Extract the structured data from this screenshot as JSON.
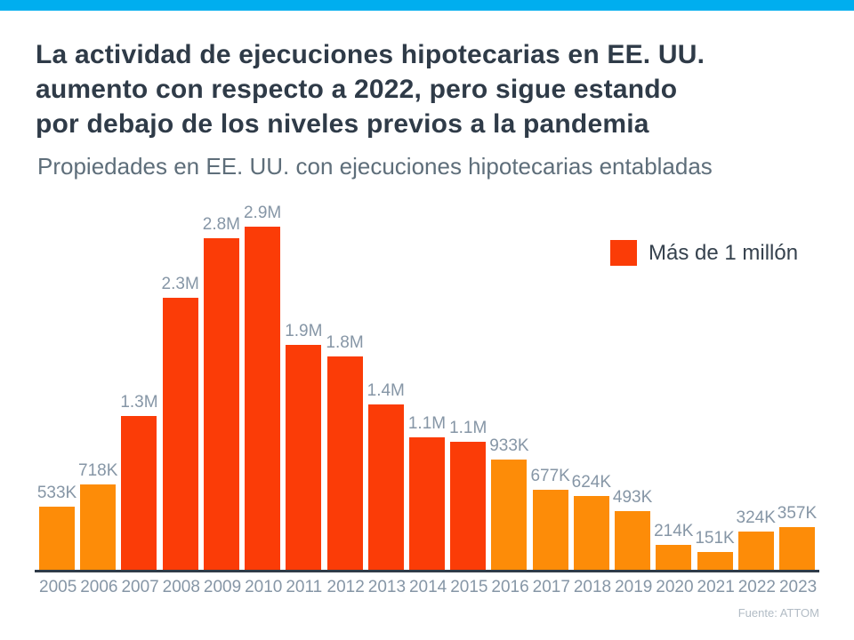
{
  "theme": {
    "accent_bar_color": "#00AEEF",
    "background": "#FFFFFF",
    "title_color": "#2F3B48",
    "subtitle_color": "#5E6E7A",
    "label_color": "#8696A6",
    "axis_color": "#2F3B48"
  },
  "header": {
    "title": "La actividad de ejecuciones hipotecarias en EE. UU.\naumento con respecto a 2022, pero sigue estando\npor debajo de los niveles previos a la pandemia",
    "subtitle": "Propiedades en EE. UU. con ejecuciones hipotecarias entabladas"
  },
  "chart_data": {
    "type": "bar",
    "title": "Propiedades en EE. UU. con ejecuciones hipotecarias entabladas",
    "categories": [
      "2005",
      "2006",
      "2007",
      "2008",
      "2009",
      "2010",
      "2011",
      "2012",
      "2013",
      "2014",
      "2015",
      "2016",
      "2017",
      "2018",
      "2019",
      "2020",
      "2021",
      "2022",
      "2023"
    ],
    "values": [
      533000,
      718000,
      1300000,
      2300000,
      2800000,
      2900000,
      1900000,
      1800000,
      1400000,
      1117000,
      1083000,
      933000,
      677000,
      624000,
      493000,
      214000,
      151000,
      324000,
      357000
    ],
    "labels": [
      "533K",
      "718K",
      "1.3M",
      "2.3M",
      "2.8M",
      "2.9M",
      "1.9M",
      "1.8M",
      "1.4M",
      "1.1M",
      "1.1M",
      "933K",
      "677K",
      "624K",
      "493K",
      "214K",
      "151K",
      "324K",
      "357K"
    ],
    "xlabel": "",
    "ylabel": "",
    "ylim": [
      0,
      2900000
    ],
    "grid": false,
    "threshold": 1000000,
    "colors": {
      "over_threshold": "#FB3C07",
      "under_threshold": "#FD8C08"
    },
    "legend": {
      "label": "Más de 1 millón",
      "color": "#FB3C07",
      "position": "top-right"
    }
  },
  "footer": {
    "source": "Fuente: ATTOM"
  }
}
